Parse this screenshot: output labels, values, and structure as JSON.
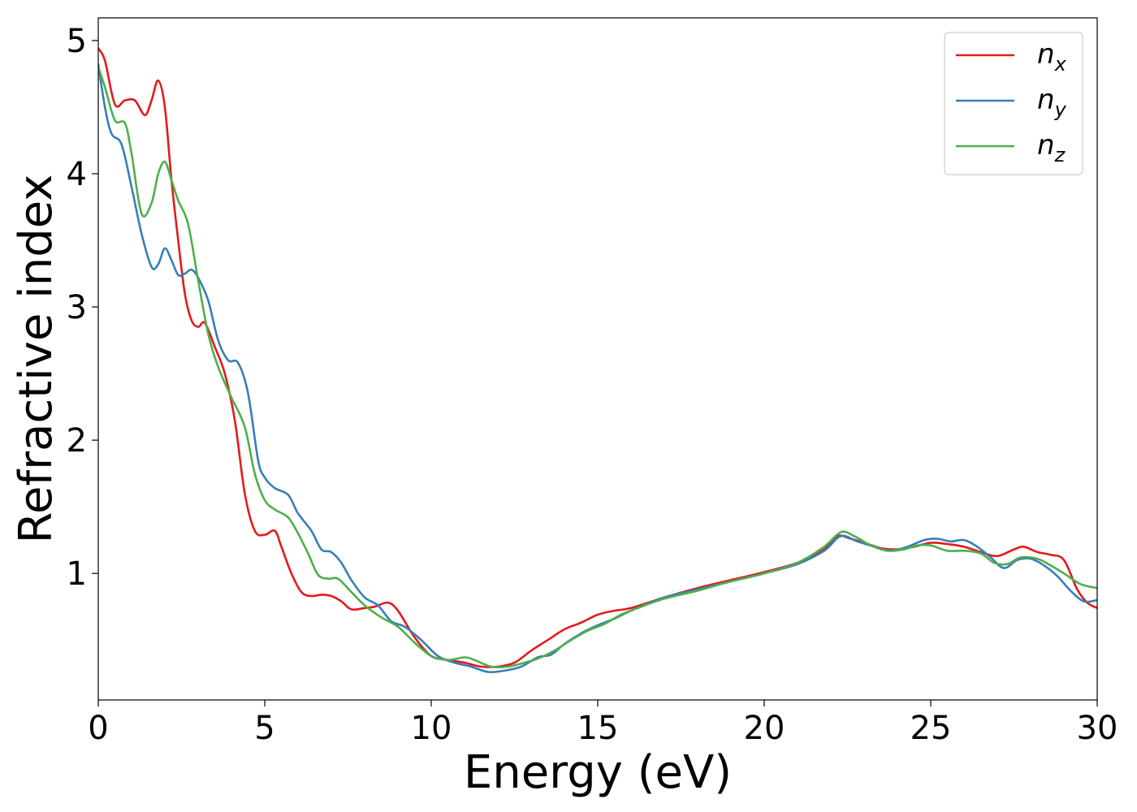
{
  "chart_data": {
    "type": "line",
    "title": "",
    "xlabel": "Energy (eV)",
    "ylabel": "Refractive index",
    "xlim": [
      0,
      30
    ],
    "ylim": [
      0.05,
      5.17
    ],
    "xticks": [
      "0",
      "5",
      "10",
      "15",
      "20",
      "25",
      "30"
    ],
    "yticks": [
      "1",
      "2",
      "3",
      "4",
      "5"
    ],
    "grid": false,
    "legend_position": "top-right",
    "series": [
      {
        "name": "n",
        "subscript": "x",
        "color": "#e41a1c",
        "points": [
          [
            0,
            4.94
          ],
          [
            0.2,
            4.85
          ],
          [
            0.5,
            4.52
          ],
          [
            0.8,
            4.55
          ],
          [
            1.1,
            4.55
          ],
          [
            1.4,
            4.44
          ],
          [
            1.6,
            4.55
          ],
          [
            1.8,
            4.7
          ],
          [
            2.0,
            4.5
          ],
          [
            2.2,
            3.95
          ],
          [
            2.4,
            3.5
          ],
          [
            2.6,
            3.1
          ],
          [
            2.8,
            2.9
          ],
          [
            3.0,
            2.85
          ],
          [
            3.2,
            2.88
          ],
          [
            3.5,
            2.7
          ],
          [
            3.8,
            2.5
          ],
          [
            4.1,
            2.15
          ],
          [
            4.4,
            1.6
          ],
          [
            4.7,
            1.32
          ],
          [
            5.0,
            1.29
          ],
          [
            5.3,
            1.32
          ],
          [
            5.5,
            1.2
          ],
          [
            5.8,
            1.0
          ],
          [
            6.1,
            0.86
          ],
          [
            6.4,
            0.83
          ],
          [
            6.7,
            0.84
          ],
          [
            7.0,
            0.83
          ],
          [
            7.3,
            0.79
          ],
          [
            7.6,
            0.73
          ],
          [
            8.0,
            0.74
          ],
          [
            8.3,
            0.75
          ],
          [
            8.7,
            0.78
          ],
          [
            9.0,
            0.72
          ],
          [
            9.5,
            0.52
          ],
          [
            10.0,
            0.38
          ],
          [
            10.5,
            0.35
          ],
          [
            11.0,
            0.33
          ],
          [
            11.5,
            0.3
          ],
          [
            12.0,
            0.3
          ],
          [
            12.5,
            0.33
          ],
          [
            13.0,
            0.42
          ],
          [
            13.5,
            0.5
          ],
          [
            14.0,
            0.58
          ],
          [
            14.5,
            0.63
          ],
          [
            15.0,
            0.69
          ],
          [
            15.5,
            0.72
          ],
          [
            16.0,
            0.74
          ],
          [
            17.0,
            0.82
          ],
          [
            18.0,
            0.89
          ],
          [
            19.0,
            0.95
          ],
          [
            20.0,
            1.01
          ],
          [
            21.0,
            1.08
          ],
          [
            21.8,
            1.18
          ],
          [
            22.2,
            1.28
          ],
          [
            22.6,
            1.26
          ],
          [
            23.0,
            1.23
          ],
          [
            23.5,
            1.19
          ],
          [
            24.0,
            1.18
          ],
          [
            24.5,
            1.2
          ],
          [
            25.0,
            1.23
          ],
          [
            25.5,
            1.22
          ],
          [
            26.0,
            1.2
          ],
          [
            26.5,
            1.16
          ],
          [
            27.0,
            1.13
          ],
          [
            27.5,
            1.18
          ],
          [
            27.8,
            1.2
          ],
          [
            28.2,
            1.16
          ],
          [
            28.6,
            1.14
          ],
          [
            29.0,
            1.1
          ],
          [
            29.4,
            0.88
          ],
          [
            29.7,
            0.78
          ],
          [
            30.0,
            0.74
          ]
        ]
      },
      {
        "name": "n",
        "subscript": "y",
        "color": "#377eb8",
        "points": [
          [
            0,
            4.82
          ],
          [
            0.2,
            4.5
          ],
          [
            0.4,
            4.3
          ],
          [
            0.7,
            4.22
          ],
          [
            1.0,
            3.9
          ],
          [
            1.3,
            3.55
          ],
          [
            1.6,
            3.3
          ],
          [
            1.8,
            3.32
          ],
          [
            2.0,
            3.44
          ],
          [
            2.2,
            3.35
          ],
          [
            2.4,
            3.24
          ],
          [
            2.6,
            3.25
          ],
          [
            2.8,
            3.28
          ],
          [
            3.0,
            3.22
          ],
          [
            3.3,
            3.05
          ],
          [
            3.6,
            2.75
          ],
          [
            3.9,
            2.6
          ],
          [
            4.2,
            2.58
          ],
          [
            4.5,
            2.35
          ],
          [
            4.8,
            1.85
          ],
          [
            5.0,
            1.72
          ],
          [
            5.3,
            1.64
          ],
          [
            5.7,
            1.59
          ],
          [
            6.0,
            1.45
          ],
          [
            6.4,
            1.32
          ],
          [
            6.7,
            1.18
          ],
          [
            7.0,
            1.16
          ],
          [
            7.3,
            1.08
          ],
          [
            7.6,
            0.95
          ],
          [
            8.0,
            0.82
          ],
          [
            8.4,
            0.76
          ],
          [
            8.8,
            0.64
          ],
          [
            9.2,
            0.6
          ],
          [
            9.7,
            0.5
          ],
          [
            10.2,
            0.38
          ],
          [
            10.7,
            0.33
          ],
          [
            11.2,
            0.3
          ],
          [
            11.7,
            0.26
          ],
          [
            12.2,
            0.27
          ],
          [
            12.7,
            0.3
          ],
          [
            13.2,
            0.37
          ],
          [
            13.6,
            0.39
          ],
          [
            14.0,
            0.47
          ],
          [
            14.5,
            0.55
          ],
          [
            15.0,
            0.61
          ],
          [
            15.5,
            0.66
          ],
          [
            16.0,
            0.72
          ],
          [
            17.0,
            0.82
          ],
          [
            18.0,
            0.88
          ],
          [
            19.0,
            0.94
          ],
          [
            20.0,
            1.0
          ],
          [
            21.0,
            1.07
          ],
          [
            21.8,
            1.17
          ],
          [
            22.3,
            1.28
          ],
          [
            22.8,
            1.24
          ],
          [
            23.3,
            1.2
          ],
          [
            23.8,
            1.17
          ],
          [
            24.3,
            1.2
          ],
          [
            24.8,
            1.25
          ],
          [
            25.2,
            1.26
          ],
          [
            25.6,
            1.24
          ],
          [
            26.0,
            1.25
          ],
          [
            26.4,
            1.2
          ],
          [
            26.8,
            1.12
          ],
          [
            27.2,
            1.04
          ],
          [
            27.6,
            1.1
          ],
          [
            28.0,
            1.11
          ],
          [
            28.4,
            1.06
          ],
          [
            28.8,
            0.98
          ],
          [
            29.2,
            0.87
          ],
          [
            29.6,
            0.79
          ],
          [
            30.0,
            0.8
          ]
        ]
      },
      {
        "name": "n",
        "subscript": "z",
        "color": "#4daf4a",
        "points": [
          [
            0,
            4.8
          ],
          [
            0.2,
            4.65
          ],
          [
            0.5,
            4.4
          ],
          [
            0.8,
            4.38
          ],
          [
            1.0,
            4.15
          ],
          [
            1.3,
            3.7
          ],
          [
            1.6,
            3.78
          ],
          [
            1.8,
            4.0
          ],
          [
            2.0,
            4.09
          ],
          [
            2.2,
            3.95
          ],
          [
            2.4,
            3.8
          ],
          [
            2.7,
            3.62
          ],
          [
            3.0,
            3.2
          ],
          [
            3.3,
            2.8
          ],
          [
            3.6,
            2.55
          ],
          [
            4.0,
            2.32
          ],
          [
            4.4,
            2.1
          ],
          [
            4.7,
            1.75
          ],
          [
            5.0,
            1.55
          ],
          [
            5.3,
            1.48
          ],
          [
            5.7,
            1.42
          ],
          [
            6.0,
            1.3
          ],
          [
            6.3,
            1.15
          ],
          [
            6.6,
            0.99
          ],
          [
            6.9,
            0.96
          ],
          [
            7.2,
            0.96
          ],
          [
            7.6,
            0.86
          ],
          [
            8.0,
            0.76
          ],
          [
            8.5,
            0.67
          ],
          [
            9.0,
            0.6
          ],
          [
            9.5,
            0.48
          ],
          [
            10.0,
            0.38
          ],
          [
            10.5,
            0.35
          ],
          [
            11.0,
            0.37
          ],
          [
            11.3,
            0.35
          ],
          [
            11.8,
            0.3
          ],
          [
            12.3,
            0.3
          ],
          [
            12.8,
            0.33
          ],
          [
            13.2,
            0.36
          ],
          [
            13.7,
            0.42
          ],
          [
            14.2,
            0.5
          ],
          [
            14.7,
            0.57
          ],
          [
            15.2,
            0.62
          ],
          [
            15.7,
            0.69
          ],
          [
            16.2,
            0.74
          ],
          [
            17.0,
            0.81
          ],
          [
            18.0,
            0.87
          ],
          [
            19.0,
            0.94
          ],
          [
            20.0,
            1.0
          ],
          [
            21.0,
            1.08
          ],
          [
            21.8,
            1.2
          ],
          [
            22.3,
            1.31
          ],
          [
            22.7,
            1.28
          ],
          [
            23.2,
            1.21
          ],
          [
            23.7,
            1.17
          ],
          [
            24.2,
            1.18
          ],
          [
            24.6,
            1.21
          ],
          [
            25.0,
            1.21
          ],
          [
            25.5,
            1.17
          ],
          [
            26.0,
            1.17
          ],
          [
            26.5,
            1.15
          ],
          [
            26.9,
            1.08
          ],
          [
            27.3,
            1.07
          ],
          [
            27.7,
            1.12
          ],
          [
            28.2,
            1.11
          ],
          [
            28.6,
            1.06
          ],
          [
            29.0,
            1.0
          ],
          [
            29.5,
            0.92
          ],
          [
            30.0,
            0.89
          ]
        ]
      }
    ]
  }
}
